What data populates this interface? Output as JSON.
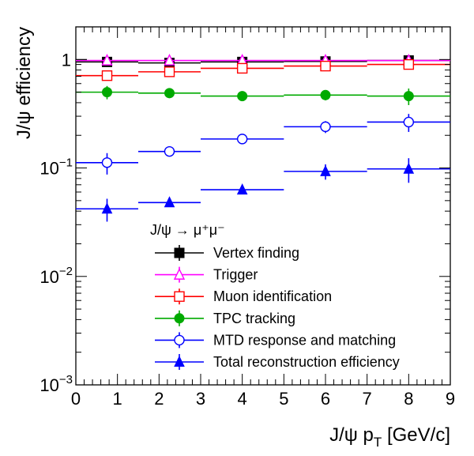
{
  "chart_data": {
    "type": "scatter",
    "xlabel": "J/ψ p_T [GeV/c]",
    "ylabel": "J/ψ efficiency",
    "xlim": [
      0,
      9
    ],
    "ylim": [
      0.001,
      2
    ],
    "y_scale": "log",
    "grid": false,
    "legend_position": "bottom-center",
    "legend_title": "J/ψ → μ⁺μ⁻",
    "x_ticks": [
      "0",
      "1",
      "2",
      "3",
      "4",
      "5",
      "6",
      "7",
      "8",
      "9"
    ],
    "y_ticks": [
      {
        "value": 1,
        "base": "1",
        "exp": ""
      },
      {
        "value": 0.1,
        "base": "10",
        "exp": "−1"
      },
      {
        "value": 0.01,
        "base": "10",
        "exp": "−2"
      },
      {
        "value": 0.001,
        "base": "10",
        "exp": "−3"
      }
    ],
    "bins": [
      [
        0,
        1.5
      ],
      [
        1.5,
        3
      ],
      [
        3,
        5
      ],
      [
        5,
        7
      ],
      [
        7,
        9
      ]
    ],
    "x_centers": [
      0.75,
      2.25,
      4,
      6,
      8
    ],
    "series": [
      {
        "name": "Vertex finding",
        "marker": "square-filled",
        "color": "#000000",
        "values": [
          0.95,
          0.93,
          0.95,
          0.96,
          0.98
        ],
        "errors": [
          0.05,
          0.05,
          0.05,
          0.05,
          0.05
        ]
      },
      {
        "name": "Trigger",
        "marker": "triangle-open",
        "color": "#ff00ff",
        "values": [
          0.98,
          0.98,
          0.98,
          0.98,
          0.98
        ],
        "errors": [
          0.02,
          0.02,
          0.02,
          0.02,
          0.02
        ]
      },
      {
        "name": "Muon identification",
        "marker": "square-open",
        "color": "#ff0000",
        "values": [
          0.71,
          0.77,
          0.83,
          0.87,
          0.9
        ],
        "errors": [
          0.04,
          0.04,
          0.04,
          0.05,
          0.05
        ]
      },
      {
        "name": "TPC tracking",
        "marker": "circle-filled",
        "color": "#00aa00",
        "values": [
          0.5,
          0.49,
          0.46,
          0.47,
          0.46
        ],
        "errors": [
          0.07,
          0.04,
          0.03,
          0.05,
          0.08
        ]
      },
      {
        "name": "MTD response and matching",
        "marker": "circle-open",
        "color": "#0000ff",
        "values": [
          0.112,
          0.142,
          0.185,
          0.24,
          0.265
        ],
        "errors": [
          0.025,
          0.01,
          0.012,
          0.03,
          0.05
        ]
      },
      {
        "name": "Total reconstruction efficiency",
        "marker": "triangle-filled",
        "color": "#0000ff",
        "values": [
          0.042,
          0.048,
          0.063,
          0.093,
          0.098
        ],
        "errors": [
          0.01,
          0.004,
          0.005,
          0.015,
          0.025
        ]
      }
    ]
  }
}
